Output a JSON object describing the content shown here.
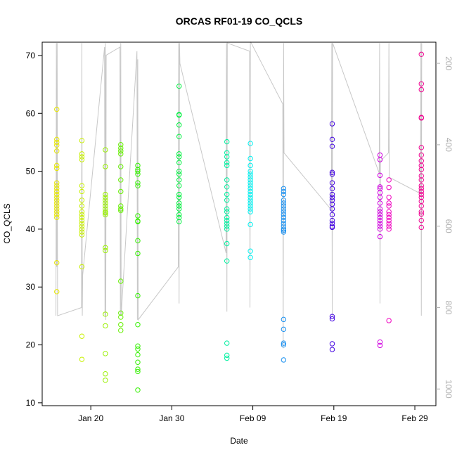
{
  "chart_data": {
    "type": "scatter",
    "title": "ORCAS RF01-19 CO_QCLS",
    "x_label": "Date",
    "y_label": "CO_QCLS",
    "xlim": [
      14,
      62.6
    ],
    "xticks": [
      {
        "value": 20,
        "label": "Jan 20"
      },
      {
        "value": 30,
        "label": "Jan 30"
      },
      {
        "value": 40,
        "label": "Feb 09"
      },
      {
        "value": 50,
        "label": "Feb 19"
      },
      {
        "value": 60,
        "label": "Feb 29"
      }
    ],
    "ylim": [
      9.5,
      72.3
    ],
    "yticks": [
      10,
      20,
      30,
      40,
      50,
      60,
      70
    ],
    "y2lim": [
      1041,
      148
    ],
    "y2ticks": [
      200,
      400,
      600,
      800,
      1000
    ],
    "series": [
      {
        "type": "line",
        "axis": "y2",
        "color": "#c8c8c8",
        "x": [
          15.7,
          15.75,
          15.8,
          15.85,
          15.9,
          18.85,
          18.9,
          18.95,
          19.0,
          21.7,
          21.75,
          21.8,
          21.85,
          21.9,
          23.6,
          23.65,
          23.7,
          23.75,
          25.7,
          25.75,
          25.8,
          25.85,
          30.8,
          30.85,
          30.9,
          30.95,
          31.0,
          36.7,
          36.75,
          36.8,
          36.85,
          39.6,
          39.65,
          39.7,
          39.75,
          43.7,
          43.75,
          43.8,
          43.85,
          49.7,
          49.75,
          49.8,
          49.85,
          55.6,
          55.65,
          55.7,
          55.75,
          56.75,
          56.8,
          56.85,
          60.7,
          60.75,
          60.8,
          60.85
        ],
        "values": [
          820,
          150,
          700,
          150,
          820,
          800,
          150,
          820,
          720,
          160,
          820,
          150,
          830,
          180,
          160,
          820,
          150,
          820,
          170,
          830,
          190,
          830,
          700,
          150,
          790,
          150,
          200,
          666,
          150,
          810,
          150,
          170,
          800,
          150,
          148,
          300,
          900,
          150,
          420,
          560,
          150,
          820,
          150,
          470,
          150,
          790,
          440,
          420,
          150,
          480,
          520,
          150,
          820,
          150
        ]
      },
      {
        "color": "#e6e600",
        "x": [
          15.8,
          15.8,
          15.8,
          15.8,
          15.8,
          15.8,
          15.8,
          15.8,
          15.8,
          15.8,
          15.8,
          15.8,
          15.8,
          15.8,
          15.8,
          15.8,
          15.8,
          15.8,
          15.8,
          15.8,
          15.8,
          15.8
        ],
        "values": [
          60.7,
          55.5,
          55,
          54.5,
          53.5,
          51,
          50.5,
          48,
          47.5,
          47,
          46.5,
          46,
          45.5,
          45,
          44.5,
          44,
          43.5,
          43,
          42.5,
          42,
          34.2,
          29.2
        ]
      },
      {
        "color": "#c8f000",
        "x": [
          18.9,
          18.9,
          18.9,
          18.9,
          18.9,
          18.9,
          18.9,
          18.9,
          18.9,
          18.9,
          18.9,
          18.9,
          18.9,
          18.9,
          18.9,
          18.9,
          18.9,
          18.9,
          18.9,
          18.9
        ],
        "values": [
          55.3,
          53,
          52.5,
          52,
          47.5,
          46.5,
          45,
          44,
          43,
          42.5,
          42,
          41.5,
          41,
          40.5,
          40,
          39.5,
          39,
          33.5,
          21.5,
          17.5
        ]
      },
      {
        "color": "#99f000",
        "x": [
          21.8,
          21.8,
          21.8,
          21.8,
          21.8,
          21.8,
          21.8,
          21.8,
          21.8,
          21.8,
          21.8,
          21.8,
          21.8,
          21.8,
          21.8,
          21.8,
          21.8,
          21.8
        ],
        "values": [
          53.7,
          50.8,
          46,
          45.5,
          45,
          44.5,
          44,
          43.5,
          43,
          42.8,
          42.5,
          36.8,
          36.3,
          25.3,
          23.3,
          18.5,
          15,
          13.9
        ]
      },
      {
        "color": "#66f000",
        "x": [
          23.7,
          23.7,
          23.7,
          23.7,
          23.7,
          23.7,
          23.7,
          23.7,
          23.7,
          23.7,
          23.7,
          23.7,
          23.7,
          23.7,
          23.7
        ],
        "values": [
          54.6,
          54,
          53.5,
          53,
          50.8,
          48.5,
          46.5,
          44,
          43.5,
          43.2,
          31,
          25.5,
          24.8,
          23.5,
          22.5
        ]
      },
      {
        "color": "#33f000",
        "x": [
          25.8,
          25.8,
          25.8,
          25.8,
          25.8,
          25.8,
          25.8,
          25.8,
          25.8,
          25.8,
          25.8,
          25.8,
          25.8,
          25.8,
          25.8,
          25.8,
          25.8,
          25.8,
          25.8,
          25.8
        ],
        "values": [
          51,
          50.3,
          50,
          49.5,
          48,
          47.5,
          42.3,
          41.4,
          41.3,
          38,
          35.8,
          28.5,
          23.5,
          19.8,
          19.3,
          18.3,
          17,
          15.8,
          15.4,
          12.2
        ]
      },
      {
        "color": "#00f040",
        "x": [
          30.9,
          30.9,
          30.9,
          30.9,
          30.9,
          30.9,
          30.9,
          30.9,
          30.9,
          30.9,
          30.9,
          30.9,
          30.9,
          30.9,
          30.9,
          30.9,
          30.9,
          30.9,
          30.9,
          30.9
        ],
        "values": [
          64.7,
          59.8,
          59.7,
          58,
          56,
          53,
          52.5,
          51.5,
          50,
          49.5,
          48.5,
          47.5,
          46,
          45.5,
          44.5,
          44,
          43.5,
          42.5,
          42,
          41.3
        ]
      },
      {
        "color": "#00f0a0",
        "x": [
          36.8,
          36.8,
          36.8,
          36.8,
          36.8,
          36.8,
          36.8,
          36.8,
          36.8,
          36.8,
          36.8,
          36.8,
          36.8,
          36.8,
          36.8,
          36.8,
          36.8,
          36.8,
          36.8,
          36.8,
          36.8
        ],
        "values": [
          55.1,
          53.2,
          52.5,
          51.5,
          51,
          48.5,
          47.3,
          46,
          45,
          43.5,
          43,
          42,
          41.5,
          41,
          40.5,
          40,
          37.5,
          34.5,
          20.3,
          18.2,
          17.7
        ]
      },
      {
        "color": "#00f0f0",
        "x": [
          39.7,
          39.7,
          39.7,
          39.7,
          39.7,
          39.7,
          39.7,
          39.7,
          39.7,
          39.7,
          39.7,
          39.7,
          39.7,
          39.7,
          39.7,
          39.7,
          39.7,
          39.7,
          39.7,
          39.7,
          39.7
        ],
        "values": [
          54.8,
          52.2,
          51,
          50,
          49.5,
          49,
          48.5,
          48,
          47.5,
          47,
          46.5,
          46,
          45.5,
          45,
          44.5,
          44,
          43.5,
          43,
          40.8,
          36.2,
          35.1
        ]
      },
      {
        "color": "#1a90f0",
        "x": [
          43.8,
          43.8,
          43.8,
          43.8,
          43.8,
          43.8,
          43.8,
          43.8,
          43.8,
          43.8,
          43.8,
          43.8,
          43.8,
          43.8,
          43.8,
          43.8,
          43.8,
          43.8,
          43.8,
          43.8,
          43.8
        ],
        "values": [
          47,
          46.5,
          46,
          45,
          44.5,
          44,
          43.5,
          43,
          42.5,
          42,
          41.5,
          41,
          40.5,
          40,
          39.8,
          39.5,
          24.4,
          22.7,
          20.3,
          20,
          17.4
        ]
      },
      {
        "color": "#4000e0",
        "x": [
          49.8,
          49.8,
          49.8,
          49.8,
          49.8,
          49.8,
          49.8,
          49.8,
          49.8,
          49.8,
          49.8,
          49.8,
          49.8,
          49.8,
          49.8,
          49.8,
          49.8,
          49.8,
          49.8,
          49.8,
          49.8
        ],
        "values": [
          58.2,
          55.5,
          54.3,
          49.8,
          49.5,
          48,
          47,
          46,
          45.5,
          45,
          44.3,
          43.5,
          42.5,
          41.5,
          41,
          40.5,
          40.3,
          24.9,
          24.5,
          20.2,
          19.2
        ]
      },
      {
        "color": "#d000e0",
        "x": [
          55.7,
          55.7,
          55.7,
          55.7,
          55.7,
          55.7,
          55.7,
          55.7,
          55.7,
          55.7,
          55.7,
          55.7,
          55.7,
          55.7,
          55.7,
          55.7,
          55.7,
          55.7,
          55.7
        ],
        "values": [
          52.8,
          52,
          49.3,
          47.3,
          47,
          46.3,
          45.5,
          44.5,
          43.5,
          43,
          42.5,
          42,
          41.5,
          41,
          40.5,
          40,
          38.7,
          20.5,
          19.9
        ]
      },
      {
        "color": "#f000c0",
        "x": [
          56.8,
          56.8,
          56.8,
          56.8,
          56.8,
          56.8,
          56.8,
          56.8,
          56.8,
          56.8,
          56.8,
          56.8,
          56.8
        ],
        "values": [
          48.5,
          47.2,
          45.5,
          44.5,
          44,
          43,
          42.5,
          42,
          41.5,
          41,
          40.5,
          40,
          24.2
        ]
      },
      {
        "color": "#f00090",
        "x": [
          60.8,
          60.8,
          60.8,
          60.8,
          60.8,
          60.8,
          60.8,
          60.8,
          60.8,
          60.8,
          60.8,
          60.8,
          60.8,
          60.8,
          60.8,
          60.8,
          60.8,
          60.8,
          60.8,
          60.8,
          60.8,
          60.8,
          60.8
        ],
        "values": [
          70.2,
          65.1,
          64.1,
          59.3,
          59.2,
          54.1,
          52.8,
          51.8,
          51,
          50.3,
          49.2,
          48.5,
          47.5,
          47,
          46.5,
          46,
          45.5,
          44.8,
          44,
          43,
          42.6,
          41.5,
          40.3
        ]
      }
    ]
  }
}
